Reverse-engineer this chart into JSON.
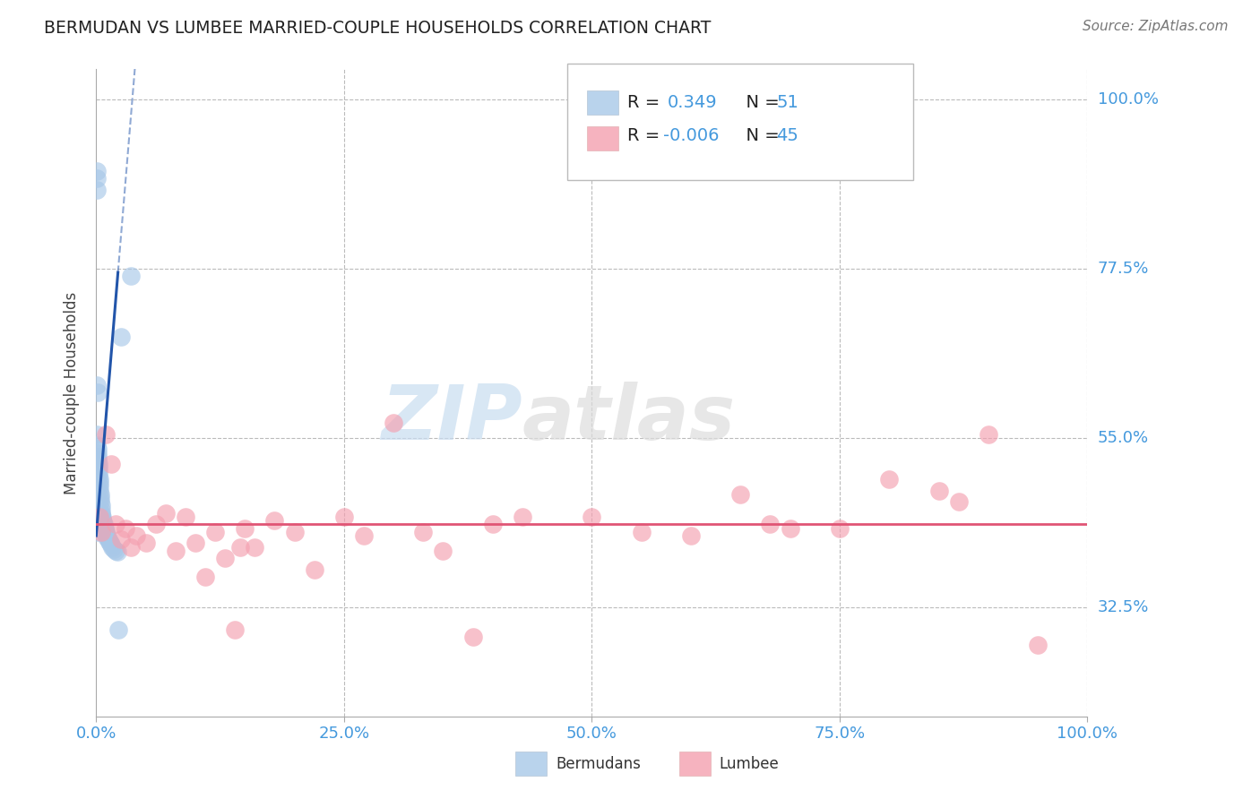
{
  "title": "BERMUDAN VS LUMBEE MARRIED-COUPLE HOUSEHOLDS CORRELATION CHART",
  "source": "Source: ZipAtlas.com",
  "ylabel": "Married-couple Households",
  "watermark": "ZIPatlas",
  "blue_R": 0.349,
  "blue_N": 51,
  "pink_R": -0.006,
  "pink_N": 45,
  "blue_label": "Bermudans",
  "pink_label": "Lumbee",
  "xmin": 0.0,
  "xmax": 100.0,
  "ymin": 18.0,
  "ymax": 104.0,
  "yticks": [
    32.5,
    55.0,
    77.5,
    100.0
  ],
  "xtick_vals": [
    0.0,
    25.0,
    50.0,
    75.0,
    100.0
  ],
  "xtick_labels": [
    "0.0%",
    "25.0%",
    "50.0%",
    "75.0%",
    "100.0%"
  ],
  "blue_scatter_x": [
    0.05,
    0.05,
    0.1,
    0.1,
    0.12,
    0.15,
    0.15,
    0.18,
    0.2,
    0.22,
    0.25,
    0.28,
    0.3,
    0.32,
    0.35,
    0.38,
    0.4,
    0.42,
    0.45,
    0.48,
    0.5,
    0.52,
    0.55,
    0.58,
    0.6,
    0.65,
    0.7,
    0.75,
    0.8,
    0.85,
    0.9,
    0.95,
    1.0,
    1.05,
    1.1,
    1.2,
    1.3,
    1.4,
    1.5,
    1.6,
    1.8,
    2.0,
    2.1,
    2.2,
    0.08,
    0.08,
    0.08,
    0.1,
    0.12,
    2.5,
    3.5
  ],
  "blue_scatter_y": [
    42.5,
    43.0,
    55.5,
    54.0,
    53.5,
    53.0,
    52.5,
    52.0,
    51.5,
    51.0,
    50.5,
    50.0,
    49.5,
    49.0,
    48.5,
    48.0,
    47.5,
    47.0,
    46.5,
    46.0,
    45.5,
    45.0,
    44.8,
    44.5,
    44.2,
    44.0,
    43.8,
    43.5,
    43.2,
    43.0,
    42.8,
    42.5,
    42.2,
    42.0,
    41.8,
    41.5,
    41.2,
    41.0,
    40.8,
    40.5,
    40.2,
    40.0,
    39.8,
    29.5,
    88.0,
    89.5,
    90.5,
    62.0,
    61.0,
    68.5,
    76.5
  ],
  "pink_scatter_x": [
    0.3,
    0.5,
    1.0,
    1.5,
    2.0,
    2.5,
    3.0,
    3.5,
    4.0,
    5.0,
    6.0,
    7.0,
    8.0,
    9.0,
    10.0,
    11.0,
    12.0,
    13.0,
    14.0,
    14.5,
    15.0,
    16.0,
    18.0,
    20.0,
    22.0,
    25.0,
    27.0,
    30.0,
    33.0,
    35.0,
    38.0,
    40.0,
    43.0,
    50.0,
    55.0,
    60.0,
    65.0,
    68.0,
    70.0,
    75.0,
    80.0,
    85.0,
    87.0,
    90.0,
    95.0
  ],
  "pink_scatter_y": [
    44.5,
    42.5,
    55.5,
    51.5,
    43.5,
    41.5,
    43.0,
    40.5,
    42.0,
    41.0,
    43.5,
    45.0,
    40.0,
    44.5,
    41.0,
    36.5,
    42.5,
    39.0,
    29.5,
    40.5,
    43.0,
    40.5,
    44.0,
    42.5,
    37.5,
    44.5,
    42.0,
    57.0,
    42.5,
    40.0,
    28.5,
    43.5,
    44.5,
    44.5,
    42.5,
    42.0,
    47.5,
    43.5,
    43.0,
    43.0,
    49.5,
    48.0,
    46.5,
    55.5,
    27.5
  ],
  "blue_line_x0": 0.0,
  "blue_line_x1": 2.2,
  "blue_line_y0": 42.0,
  "blue_line_y1": 77.0,
  "blue_dash_x0": 2.2,
  "blue_dash_x1": 8.0,
  "pink_line_y": 43.5,
  "blue_color": "#a8c8e8",
  "pink_color": "#f4a0b0",
  "blue_line_color": "#2255aa",
  "pink_line_color": "#e05575",
  "grid_color": "#bbbbbb",
  "axis_label_color": "#4499dd",
  "title_color": "#222222",
  "source_color": "#777777",
  "watermark_color_zip": "#c8ddf0",
  "watermark_color_atlas": "#dddddd"
}
